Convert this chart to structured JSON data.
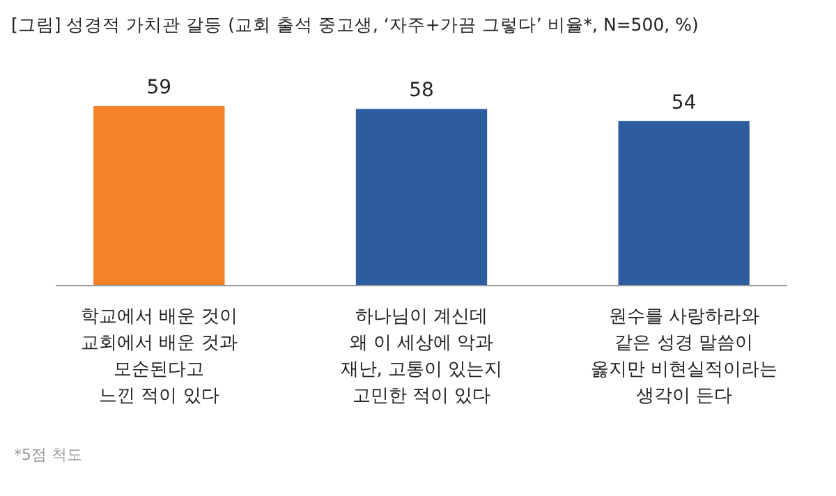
{
  "chart_data": {
    "type": "bar",
    "title": "[그림] 성경적 가치관 갈등 (교회 출석 중고생, ‘자주+가끔 그렇다’ 비율*, N=500, %)",
    "categories": [
      "학교에서 배운 것이\n교회에서 배운 것과\n모순된다고\n느낀 적이 있다",
      "하나님이 계신데\n왜 이 세상에 악과\n재난, 고통이 있는지\n고민한 적이 있다",
      "원수를 사랑하라와\n같은 성경 말씀이\n옳지만 비현실적이라는\n생각이 든다"
    ],
    "values": [
      59,
      58,
      54
    ],
    "colors": [
      "#f5822a",
      "#2e5d9f",
      "#2e5d9f"
    ],
    "data_labels": true,
    "annotations": [
      "*5점 척도"
    ]
  }
}
